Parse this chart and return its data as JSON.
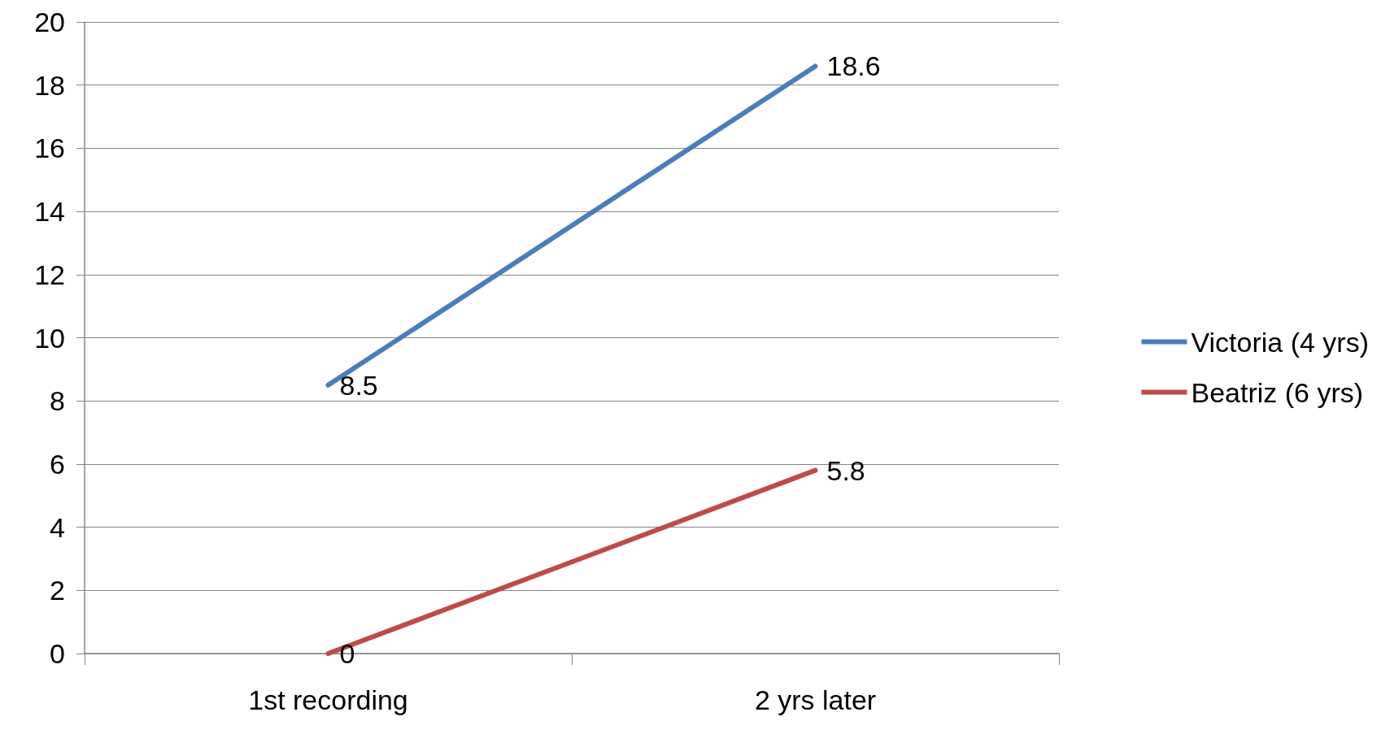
{
  "chart_data": {
    "type": "line",
    "categories": [
      "1st recording",
      "2 yrs later"
    ],
    "series": [
      {
        "name": "Victoria (4 yrs)",
        "color": "#4a7ebb",
        "values": [
          8.5,
          18.6
        ]
      },
      {
        "name": "Beatriz (6 yrs)",
        "color": "#be4b48",
        "values": [
          0,
          5.8
        ]
      }
    ],
    "ylim": [
      0,
      20
    ],
    "yticks": [
      0,
      2,
      4,
      6,
      8,
      10,
      12,
      14,
      16,
      18,
      20
    ],
    "grid": "y",
    "legend": "right",
    "data_labels": true,
    "marker": "none",
    "line_style": "solid"
  }
}
